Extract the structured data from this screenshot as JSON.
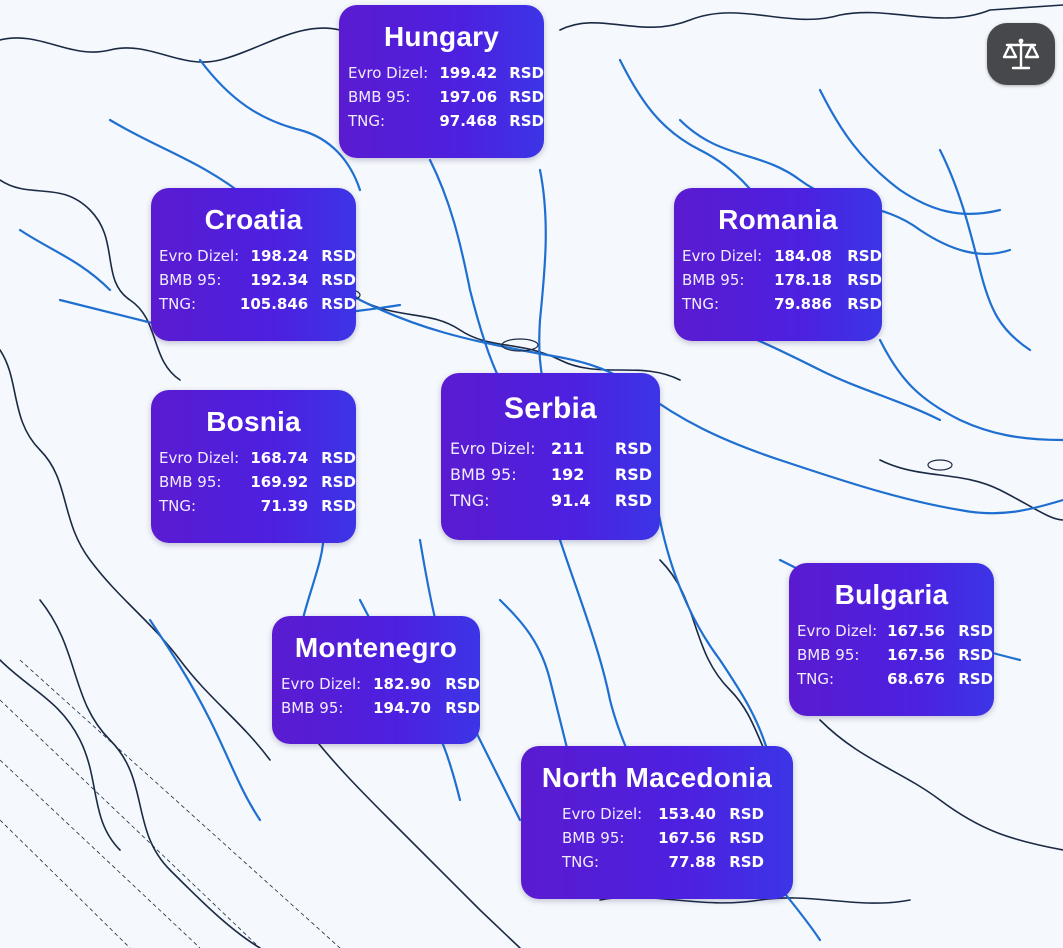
{
  "currency": "RSD",
  "labels": {
    "diesel": "Evro Dizel:",
    "petrol": "BMB 95:",
    "lpg": "TNG:"
  },
  "countries": {
    "hungary": {
      "name": "Hungary",
      "diesel": "199.42",
      "petrol": "197.06",
      "lpg": "97.468"
    },
    "croatia": {
      "name": "Croatia",
      "diesel": "198.24",
      "petrol": "192.34",
      "lpg": "105.846"
    },
    "romania": {
      "name": "Romania",
      "diesel": "184.08",
      "petrol": "178.18",
      "lpg": "79.886"
    },
    "bosnia": {
      "name": "Bosnia",
      "diesel": "168.74",
      "petrol": "169.92",
      "lpg": "71.39"
    },
    "serbia": {
      "name": "Serbia",
      "diesel": "211",
      "petrol": "192",
      "lpg": "91.4"
    },
    "bulgaria": {
      "name": "Bulgaria",
      "diesel": "167.56",
      "petrol": "167.56",
      "lpg": "68.676"
    },
    "montenegro": {
      "name": "Montenegro",
      "diesel": "182.90",
      "petrol": "194.70"
    },
    "north_macedonia": {
      "name": "North Macedonia",
      "diesel": "153.40",
      "petrol": "167.56",
      "lpg": "77.88"
    }
  },
  "icons": {
    "compare": "scales-icon"
  },
  "colors": {
    "card_start": "#5a1bd0",
    "card_end": "#3c35e6",
    "river": "#1f6fd1",
    "border": "#1b2a44",
    "button": "#46484b"
  }
}
